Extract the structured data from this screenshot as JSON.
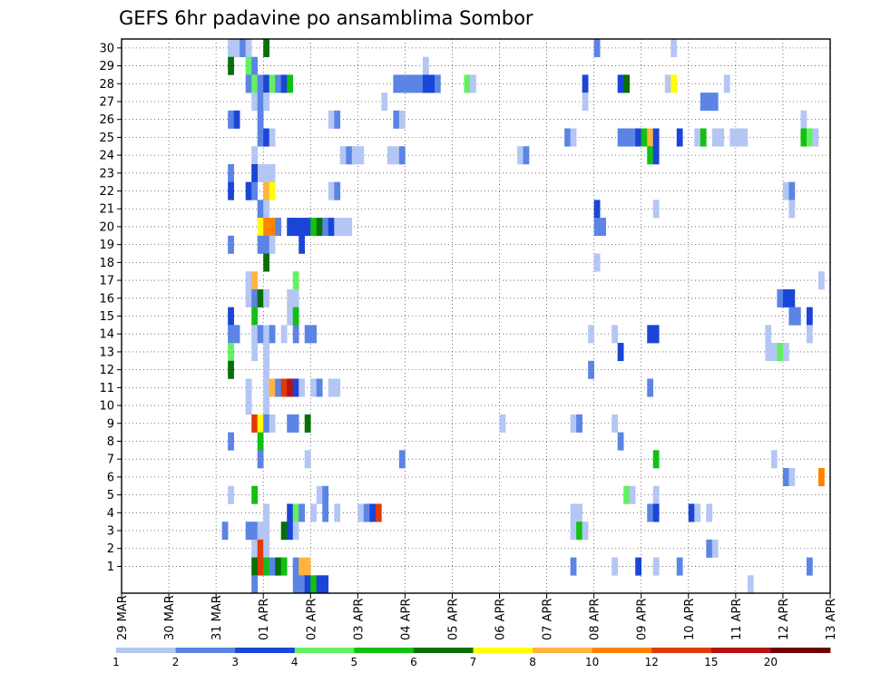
{
  "chart_data": {
    "type": "heatmap",
    "title": "GEFS 6hr padavine po ansamblima Sombor",
    "x_tick_labels": [
      "29 MAR",
      "30 MAR",
      "31 MAR",
      "01 APR",
      "02 APR",
      "03 APR",
      "04 APR",
      "05 APR",
      "06 APR",
      "07 APR",
      "08 APR",
      "09 APR",
      "10 APR",
      "11 APR",
      "12 APR",
      "13 APR"
    ],
    "y_tick_labels": [
      "1",
      "2",
      "3",
      "4",
      "5",
      "6",
      "7",
      "8",
      "9",
      "10",
      "11",
      "12",
      "13",
      "14",
      "15",
      "16",
      "17",
      "18",
      "19",
      "20",
      "21",
      "22",
      "23",
      "24",
      "25",
      "26",
      "27",
      "28",
      "29",
      "30"
    ],
    "x_unit": "6-hour step since 29 MAR 00Z",
    "y_range": [
      1,
      30
    ],
    "grid": true,
    "legend_labels": [
      "1",
      "2",
      "3",
      "4",
      "5",
      "6",
      "7",
      "8",
      "10",
      "12",
      "15",
      "20"
    ],
    "color_scale": [
      "#b4c6f4",
      "#5b84e4",
      "#1a45d6",
      "#63f063",
      "#12c012",
      "#087008",
      "#ffff00",
      "#ffb440",
      "#ff8200",
      "#e03a0a",
      "#b41414",
      "#6e0000"
    ],
    "cells": [
      {
        "x": 18,
        "y": 30,
        "v": 1
      },
      {
        "x": 19,
        "y": 30,
        "v": 1
      },
      {
        "x": 20,
        "y": 30,
        "v": 2
      },
      {
        "x": 21,
        "y": 30,
        "v": 1
      },
      {
        "x": 24,
        "y": 30,
        "v": 6
      },
      {
        "x": 80,
        "y": 30,
        "v": 2
      },
      {
        "x": 93,
        "y": 30,
        "v": 1
      },
      {
        "x": 18,
        "y": 29,
        "v": 6
      },
      {
        "x": 21,
        "y": 29,
        "v": 4
      },
      {
        "x": 22,
        "y": 29,
        "v": 2
      },
      {
        "x": 51,
        "y": 29,
        "v": 1
      },
      {
        "x": 21,
        "y": 28,
        "v": 2
      },
      {
        "x": 22,
        "y": 28,
        "v": 4
      },
      {
        "x": 23,
        "y": 28,
        "v": 2
      },
      {
        "x": 24,
        "y": 28,
        "v": 3
      },
      {
        "x": 25,
        "y": 28,
        "v": 4
      },
      {
        "x": 26,
        "y": 28,
        "v": 2
      },
      {
        "x": 27,
        "y": 28,
        "v": 3
      },
      {
        "x": 28,
        "y": 28,
        "v": 5
      },
      {
        "x": 46,
        "y": 28,
        "v": 2
      },
      {
        "x": 47,
        "y": 28,
        "v": 2
      },
      {
        "x": 48,
        "y": 28,
        "v": 2
      },
      {
        "x": 49,
        "y": 28,
        "v": 2
      },
      {
        "x": 50,
        "y": 28,
        "v": 2
      },
      {
        "x": 51,
        "y": 28,
        "v": 3
      },
      {
        "x": 52,
        "y": 28,
        "v": 3
      },
      {
        "x": 53,
        "y": 28,
        "v": 2
      },
      {
        "x": 58,
        "y": 28,
        "v": 4
      },
      {
        "x": 59,
        "y": 28,
        "v": 1
      },
      {
        "x": 78,
        "y": 28,
        "v": 3
      },
      {
        "x": 84,
        "y": 28,
        "v": 3
      },
      {
        "x": 85,
        "y": 28,
        "v": 6
      },
      {
        "x": 92,
        "y": 28,
        "v": 1
      },
      {
        "x": 93,
        "y": 28,
        "v": 7
      },
      {
        "x": 102,
        "y": 28,
        "v": 1
      },
      {
        "x": 22,
        "y": 27,
        "v": 1
      },
      {
        "x": 23,
        "y": 27,
        "v": 2
      },
      {
        "x": 24,
        "y": 27,
        "v": 1
      },
      {
        "x": 44,
        "y": 27,
        "v": 1
      },
      {
        "x": 78,
        "y": 27,
        "v": 1
      },
      {
        "x": 98,
        "y": 27,
        "v": 2
      },
      {
        "x": 99,
        "y": 27,
        "v": 2
      },
      {
        "x": 100,
        "y": 27,
        "v": 2
      },
      {
        "x": 18,
        "y": 26,
        "v": 2
      },
      {
        "x": 19,
        "y": 26,
        "v": 3
      },
      {
        "x": 23,
        "y": 26,
        "v": 2
      },
      {
        "x": 35,
        "y": 26,
        "v": 1
      },
      {
        "x": 36,
        "y": 26,
        "v": 2
      },
      {
        "x": 46,
        "y": 26,
        "v": 2
      },
      {
        "x": 47,
        "y": 26,
        "v": 1
      },
      {
        "x": 115,
        "y": 26,
        "v": 1
      },
      {
        "x": 23,
        "y": 25,
        "v": 2
      },
      {
        "x": 24,
        "y": 25,
        "v": 3
      },
      {
        "x": 25,
        "y": 25,
        "v": 1
      },
      {
        "x": 75,
        "y": 25,
        "v": 2
      },
      {
        "x": 76,
        "y": 25,
        "v": 1
      },
      {
        "x": 84,
        "y": 25,
        "v": 2
      },
      {
        "x": 85,
        "y": 25,
        "v": 2
      },
      {
        "x": 86,
        "y": 25,
        "v": 2
      },
      {
        "x": 87,
        "y": 25,
        "v": 3
      },
      {
        "x": 88,
        "y": 25,
        "v": 5
      },
      {
        "x": 89,
        "y": 25,
        "v": 8
      },
      {
        "x": 90,
        "y": 25,
        "v": 3
      },
      {
        "x": 94,
        "y": 25,
        "v": 3
      },
      {
        "x": 97,
        "y": 25,
        "v": 1
      },
      {
        "x": 98,
        "y": 25,
        "v": 5
      },
      {
        "x": 100,
        "y": 25,
        "v": 1
      },
      {
        "x": 101,
        "y": 25,
        "v": 1
      },
      {
        "x": 103,
        "y": 25,
        "v": 1
      },
      {
        "x": 104,
        "y": 25,
        "v": 1
      },
      {
        "x": 105,
        "y": 25,
        "v": 1
      },
      {
        "x": 115,
        "y": 25,
        "v": 5
      },
      {
        "x": 116,
        "y": 25,
        "v": 4
      },
      {
        "x": 117,
        "y": 25,
        "v": 1
      },
      {
        "x": 22,
        "y": 24,
        "v": 1
      },
      {
        "x": 37,
        "y": 24,
        "v": 1
      },
      {
        "x": 38,
        "y": 24,
        "v": 2
      },
      {
        "x": 39,
        "y": 24,
        "v": 1
      },
      {
        "x": 40,
        "y": 24,
        "v": 1
      },
      {
        "x": 45,
        "y": 24,
        "v": 1
      },
      {
        "x": 46,
        "y": 24,
        "v": 1
      },
      {
        "x": 47,
        "y": 24,
        "v": 2
      },
      {
        "x": 67,
        "y": 24,
        "v": 1
      },
      {
        "x": 68,
        "y": 24,
        "v": 2
      },
      {
        "x": 89,
        "y": 24,
        "v": 5
      },
      {
        "x": 90,
        "y": 24,
        "v": 3
      },
      {
        "x": 18,
        "y": 23,
        "v": 2
      },
      {
        "x": 23,
        "y": 23,
        "v": 1
      },
      {
        "x": 24,
        "y": 23,
        "v": 1
      },
      {
        "x": 25,
        "y": 23,
        "v": 1
      },
      {
        "x": 22,
        "y": 23,
        "v": 3
      },
      {
        "x": 18,
        "y": 22,
        "v": 3
      },
      {
        "x": 21,
        "y": 22,
        "v": 3
      },
      {
        "x": 22,
        "y": 22,
        "v": 2
      },
      {
        "x": 24,
        "y": 22,
        "v": 8
      },
      {
        "x": 25,
        "y": 22,
        "v": 7
      },
      {
        "x": 35,
        "y": 22,
        "v": 1
      },
      {
        "x": 36,
        "y": 22,
        "v": 2
      },
      {
        "x": 112,
        "y": 22,
        "v": 1
      },
      {
        "x": 113,
        "y": 22,
        "v": 2
      },
      {
        "x": 23,
        "y": 21,
        "v": 2
      },
      {
        "x": 24,
        "y": 21,
        "v": 1
      },
      {
        "x": 80,
        "y": 21,
        "v": 3
      },
      {
        "x": 90,
        "y": 21,
        "v": 1
      },
      {
        "x": 113,
        "y": 21,
        "v": 1
      },
      {
        "x": 23,
        "y": 20,
        "v": 7
      },
      {
        "x": 24,
        "y": 20,
        "v": 9
      },
      {
        "x": 25,
        "y": 20,
        "v": 9
      },
      {
        "x": 26,
        "y": 20,
        "v": 2
      },
      {
        "x": 28,
        "y": 20,
        "v": 3
      },
      {
        "x": 29,
        "y": 20,
        "v": 3
      },
      {
        "x": 30,
        "y": 20,
        "v": 3
      },
      {
        "x": 31,
        "y": 20,
        "v": 3
      },
      {
        "x": 32,
        "y": 20,
        "v": 5
      },
      {
        "x": 33,
        "y": 20,
        "v": 6
      },
      {
        "x": 34,
        "y": 20,
        "v": 2
      },
      {
        "x": 35,
        "y": 20,
        "v": 3
      },
      {
        "x": 36,
        "y": 20,
        "v": 1
      },
      {
        "x": 37,
        "y": 20,
        "v": 1
      },
      {
        "x": 38,
        "y": 20,
        "v": 1
      },
      {
        "x": 80,
        "y": 20,
        "v": 2
      },
      {
        "x": 81,
        "y": 20,
        "v": 2
      },
      {
        "x": 18,
        "y": 19,
        "v": 2
      },
      {
        "x": 23,
        "y": 19,
        "v": 2
      },
      {
        "x": 24,
        "y": 19,
        "v": 2
      },
      {
        "x": 25,
        "y": 19,
        "v": 1
      },
      {
        "x": 30,
        "y": 19,
        "v": 3
      },
      {
        "x": 24,
        "y": 18,
        "v": 6
      },
      {
        "x": 80,
        "y": 18,
        "v": 1
      },
      {
        "x": 21,
        "y": 17,
        "v": 1
      },
      {
        "x": 22,
        "y": 17,
        "v": 8
      },
      {
        "x": 29,
        "y": 17,
        "v": 4
      },
      {
        "x": 118,
        "y": 17,
        "v": 1
      },
      {
        "x": 21,
        "y": 16,
        "v": 1
      },
      {
        "x": 22,
        "y": 16,
        "v": 2
      },
      {
        "x": 23,
        "y": 16,
        "v": 6
      },
      {
        "x": 24,
        "y": 16,
        "v": 1
      },
      {
        "x": 28,
        "y": 16,
        "v": 1
      },
      {
        "x": 29,
        "y": 16,
        "v": 1
      },
      {
        "x": 111,
        "y": 16,
        "v": 2
      },
      {
        "x": 112,
        "y": 16,
        "v": 3
      },
      {
        "x": 113,
        "y": 16,
        "v": 3
      },
      {
        "x": 18,
        "y": 15,
        "v": 3
      },
      {
        "x": 22,
        "y": 15,
        "v": 5
      },
      {
        "x": 28,
        "y": 15,
        "v": 1
      },
      {
        "x": 29,
        "y": 15,
        "v": 5
      },
      {
        "x": 113,
        "y": 15,
        "v": 2
      },
      {
        "x": 114,
        "y": 15,
        "v": 2
      },
      {
        "x": 116,
        "y": 15,
        "v": 3
      },
      {
        "x": 18,
        "y": 14,
        "v": 2
      },
      {
        "x": 19,
        "y": 14,
        "v": 2
      },
      {
        "x": 22,
        "y": 14,
        "v": 1
      },
      {
        "x": 23,
        "y": 14,
        "v": 2
      },
      {
        "x": 24,
        "y": 14,
        "v": 1
      },
      {
        "x": 25,
        "y": 14,
        "v": 2
      },
      {
        "x": 27,
        "y": 14,
        "v": 1
      },
      {
        "x": 29,
        "y": 14,
        "v": 2
      },
      {
        "x": 31,
        "y": 14,
        "v": 2
      },
      {
        "x": 32,
        "y": 14,
        "v": 2
      },
      {
        "x": 79,
        "y": 14,
        "v": 1
      },
      {
        "x": 83,
        "y": 14,
        "v": 1
      },
      {
        "x": 89,
        "y": 14,
        "v": 3
      },
      {
        "x": 90,
        "y": 14,
        "v": 3
      },
      {
        "x": 109,
        "y": 14,
        "v": 1
      },
      {
        "x": 116,
        "y": 14,
        "v": 1
      },
      {
        "x": 18,
        "y": 13,
        "v": 4
      },
      {
        "x": 22,
        "y": 13,
        "v": 1
      },
      {
        "x": 24,
        "y": 13,
        "v": 1
      },
      {
        "x": 84,
        "y": 13,
        "v": 3
      },
      {
        "x": 109,
        "y": 13,
        "v": 1
      },
      {
        "x": 110,
        "y": 13,
        "v": 1
      },
      {
        "x": 111,
        "y": 13,
        "v": 4
      },
      {
        "x": 112,
        "y": 13,
        "v": 1
      },
      {
        "x": 18,
        "y": 12,
        "v": 6
      },
      {
        "x": 24,
        "y": 12,
        "v": 1
      },
      {
        "x": 79,
        "y": 12,
        "v": 2
      },
      {
        "x": 21,
        "y": 11,
        "v": 1
      },
      {
        "x": 24,
        "y": 11,
        "v": 1
      },
      {
        "x": 25,
        "y": 11,
        "v": 8
      },
      {
        "x": 26,
        "y": 11,
        "v": 2
      },
      {
        "x": 27,
        "y": 11,
        "v": 10
      },
      {
        "x": 28,
        "y": 11,
        "v": 11
      },
      {
        "x": 29,
        "y": 11,
        "v": 3
      },
      {
        "x": 30,
        "y": 11,
        "v": 1
      },
      {
        "x": 32,
        "y": 11,
        "v": 1
      },
      {
        "x": 33,
        "y": 11,
        "v": 2
      },
      {
        "x": 35,
        "y": 11,
        "v": 1
      },
      {
        "x": 36,
        "y": 11,
        "v": 1
      },
      {
        "x": 89,
        "y": 11,
        "v": 2
      },
      {
        "x": 21,
        "y": 10,
        "v": 1
      },
      {
        "x": 24,
        "y": 10,
        "v": 1
      },
      {
        "x": 22,
        "y": 9,
        "v": 10
      },
      {
        "x": 23,
        "y": 9,
        "v": 7
      },
      {
        "x": 24,
        "y": 9,
        "v": 2
      },
      {
        "x": 25,
        "y": 9,
        "v": 1
      },
      {
        "x": 28,
        "y": 9,
        "v": 2
      },
      {
        "x": 29,
        "y": 9,
        "v": 2
      },
      {
        "x": 31,
        "y": 9,
        "v": 6
      },
      {
        "x": 64,
        "y": 9,
        "v": 1
      },
      {
        "x": 76,
        "y": 9,
        "v": 1
      },
      {
        "x": 77,
        "y": 9,
        "v": 2
      },
      {
        "x": 83,
        "y": 9,
        "v": 1
      },
      {
        "x": 18,
        "y": 8,
        "v": 2
      },
      {
        "x": 23,
        "y": 8,
        "v": 5
      },
      {
        "x": 84,
        "y": 8,
        "v": 2
      },
      {
        "x": 23,
        "y": 7,
        "v": 2
      },
      {
        "x": 31,
        "y": 7,
        "v": 1
      },
      {
        "x": 47,
        "y": 7,
        "v": 2
      },
      {
        "x": 90,
        "y": 7,
        "v": 5
      },
      {
        "x": 110,
        "y": 7,
        "v": 1
      },
      {
        "x": 112,
        "y": 6,
        "v": 2
      },
      {
        "x": 113,
        "y": 6,
        "v": 1
      },
      {
        "x": 118,
        "y": 6,
        "v": 9
      },
      {
        "x": 18,
        "y": 5,
        "v": 1
      },
      {
        "x": 22,
        "y": 5,
        "v": 5
      },
      {
        "x": 33,
        "y": 5,
        "v": 1
      },
      {
        "x": 34,
        "y": 5,
        "v": 2
      },
      {
        "x": 85,
        "y": 5,
        "v": 4
      },
      {
        "x": 86,
        "y": 5,
        "v": 1
      },
      {
        "x": 90,
        "y": 5,
        "v": 1
      },
      {
        "x": 24,
        "y": 4,
        "v": 1
      },
      {
        "x": 28,
        "y": 4,
        "v": 3
      },
      {
        "x": 29,
        "y": 4,
        "v": 4
      },
      {
        "x": 30,
        "y": 4,
        "v": 2
      },
      {
        "x": 32,
        "y": 4,
        "v": 1
      },
      {
        "x": 34,
        "y": 4,
        "v": 2
      },
      {
        "x": 36,
        "y": 4,
        "v": 1
      },
      {
        "x": 40,
        "y": 4,
        "v": 1
      },
      {
        "x": 41,
        "y": 4,
        "v": 2
      },
      {
        "x": 42,
        "y": 4,
        "v": 3
      },
      {
        "x": 43,
        "y": 4,
        "v": 10
      },
      {
        "x": 76,
        "y": 4,
        "v": 1
      },
      {
        "x": 77,
        "y": 4,
        "v": 1
      },
      {
        "x": 89,
        "y": 4,
        "v": 2
      },
      {
        "x": 90,
        "y": 4,
        "v": 3
      },
      {
        "x": 96,
        "y": 4,
        "v": 3
      },
      {
        "x": 97,
        "y": 4,
        "v": 1
      },
      {
        "x": 99,
        "y": 4,
        "v": 1
      },
      {
        "x": 17,
        "y": 3,
        "v": 2
      },
      {
        "x": 21,
        "y": 3,
        "v": 2
      },
      {
        "x": 22,
        "y": 3,
        "v": 2
      },
      {
        "x": 23,
        "y": 3,
        "v": 1
      },
      {
        "x": 24,
        "y": 3,
        "v": 1
      },
      {
        "x": 27,
        "y": 3,
        "v": 6
      },
      {
        "x": 28,
        "y": 3,
        "v": 3
      },
      {
        "x": 29,
        "y": 3,
        "v": 1
      },
      {
        "x": 76,
        "y": 3,
        "v": 1
      },
      {
        "x": 77,
        "y": 3,
        "v": 5
      },
      {
        "x": 78,
        "y": 3,
        "v": 1
      },
      {
        "x": 22,
        "y": 2,
        "v": 1
      },
      {
        "x": 23,
        "y": 2,
        "v": 10
      },
      {
        "x": 24,
        "y": 2,
        "v": 1
      },
      {
        "x": 99,
        "y": 2,
        "v": 2
      },
      {
        "x": 100,
        "y": 2,
        "v": 1
      },
      {
        "x": 23,
        "y": 1,
        "v": 10
      },
      {
        "x": 22,
        "y": 1,
        "v": 6
      },
      {
        "x": 24,
        "y": 1,
        "v": 5
      },
      {
        "x": 25,
        "y": 1,
        "v": 2
      },
      {
        "x": 26,
        "y": 1,
        "v": 6
      },
      {
        "x": 27,
        "y": 1,
        "v": 5
      },
      {
        "x": 29,
        "y": 1,
        "v": 2
      },
      {
        "x": 30,
        "y": 1,
        "v": 8
      },
      {
        "x": 31,
        "y": 1,
        "v": 8
      },
      {
        "x": 76,
        "y": 1,
        "v": 2
      },
      {
        "x": 83,
        "y": 1,
        "v": 1
      },
      {
        "x": 87,
        "y": 1,
        "v": 3
      },
      {
        "x": 90,
        "y": 1,
        "v": 1
      },
      {
        "x": 94,
        "y": 1,
        "v": 2
      },
      {
        "x": 116,
        "y": 1,
        "v": 2
      },
      {
        "x": 22,
        "y": 0,
        "v": 2
      },
      {
        "x": 29,
        "y": 0,
        "v": 2
      },
      {
        "x": 30,
        "y": 0,
        "v": 2
      },
      {
        "x": 31,
        "y": 0,
        "v": 3
      },
      {
        "x": 32,
        "y": 0,
        "v": 5
      },
      {
        "x": 33,
        "y": 0,
        "v": 3
      },
      {
        "x": 34,
        "y": 0,
        "v": 3
      },
      {
        "x": 106,
        "y": 0,
        "v": 1
      }
    ]
  }
}
